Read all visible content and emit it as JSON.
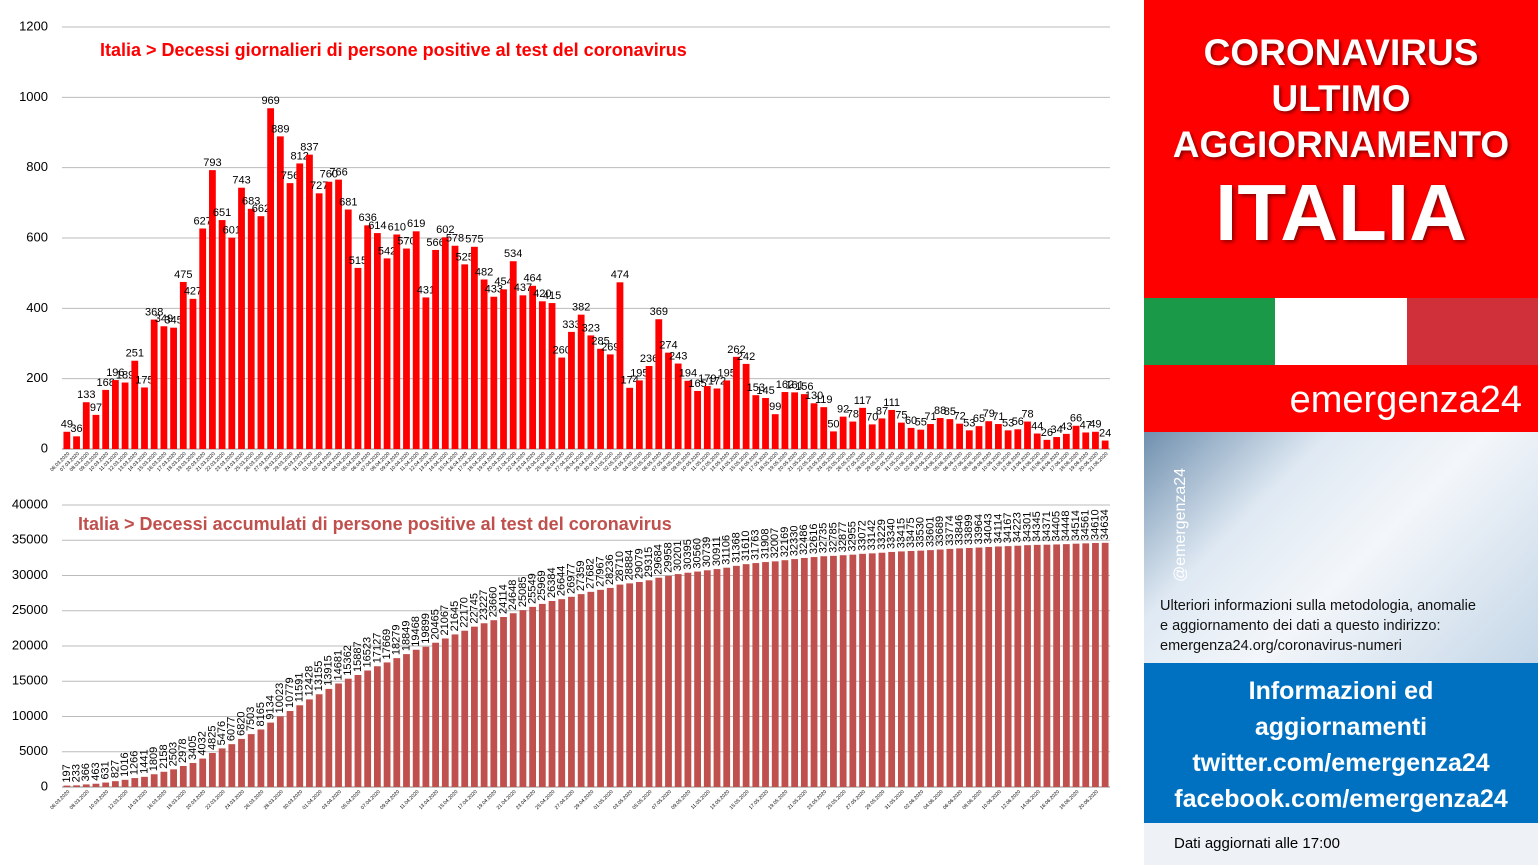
{
  "chart_data": [
    {
      "type": "bar",
      "title": "Italia > Decessi giornalieri di persone positive al test del coronavirus",
      "color": "#ff0000",
      "title_color": "#ff0000",
      "grid": true,
      "ylim": [
        0,
        1200
      ],
      "yticks": [
        0,
        200,
        400,
        600,
        800,
        1000,
        1200
      ],
      "categories": [
        "06.03.2020",
        "07.03.2020",
        "08.03.2020",
        "09.03.2020",
        "10.03.2020",
        "11.03.2020",
        "12.03.2020",
        "13.03.2020",
        "14.03.2020",
        "15.03.2020",
        "16.03.2020",
        "17.03.2020",
        "18.03.2020",
        "19.03.2020",
        "20.03.2020",
        "21.03.2020",
        "22.03.2020",
        "23.03.2020",
        "24.03.2020",
        "25.03.2020",
        "26.03.2020",
        "27.03.2020",
        "28.03.2020",
        "29.03.2020",
        "30.03.2020",
        "31.03.2020",
        "01.04.2020",
        "02.04.2020",
        "03.04.2020",
        "04.04.2020",
        "05.04.2020",
        "06.04.2020",
        "07.04.2020",
        "08.04.2020",
        "09.04.2020",
        "10.04.2020",
        "11.04.2020",
        "12.04.2020",
        "13.04.2020",
        "14.04.2020",
        "15.04.2020",
        "16.04.2020",
        "17.04.2020",
        "18.04.2020",
        "19.04.2020",
        "20.04.2020",
        "21.04.2020",
        "22.04.2020",
        "23.04.2020",
        "24.04.2020",
        "25.04.2020",
        "26.04.2020",
        "27.04.2020",
        "28.04.2020",
        "29.04.2020",
        "30.04.2020",
        "01.05.2020",
        "02.05.2020",
        "03.05.2020",
        "04.05.2020",
        "05.05.2020",
        "06.05.2020",
        "07.05.2020",
        "08.05.2020",
        "09.05.2020",
        "10.05.2020",
        "11.05.2020",
        "12.05.2020",
        "13.05.2020",
        "14.05.2020",
        "15.05.2020",
        "16.05.2020",
        "17.05.2020",
        "18.05.2020",
        "19.05.2020",
        "20.05.2020",
        "21.05.2020",
        "22.05.2020",
        "23.05.2020",
        "24.05.2020",
        "25.05.2020",
        "26.05.2020",
        "27.05.2020",
        "28.05.2020",
        "29.05.2020",
        "30.05.2020",
        "31.05.2020",
        "01.06.2020",
        "02.06.2020",
        "03.06.2020",
        "04.06.2020",
        "05.06.2020",
        "06.06.2020",
        "07.06.2020",
        "08.06.2020",
        "09.06.2020",
        "10.06.2020",
        "11.06.2020",
        "12.06.2020",
        "13.06.2020",
        "14.06.2020",
        "15.06.2020",
        "16.06.2020",
        "17.06.2020",
        "18.06.2020",
        "19.06.2020",
        "20.06.2020",
        "21.06.2020"
      ],
      "values": [
        49,
        36,
        133,
        97,
        168,
        196,
        189,
        251,
        175,
        368,
        349,
        345,
        475,
        427,
        627,
        793,
        651,
        601,
        743,
        683,
        662,
        969,
        889,
        756,
        812,
        837,
        727,
        760,
        766,
        681,
        515,
        636,
        614,
        542,
        610,
        570,
        619,
        431,
        566,
        602,
        578,
        525,
        575,
        482,
        433,
        454,
        534,
        437,
        464,
        420,
        415,
        260,
        333,
        382,
        323,
        285,
        269,
        474,
        174,
        195,
        236,
        369,
        274,
        243,
        194,
        165,
        179,
        172,
        195,
        262,
        242,
        153,
        145,
        99,
        162,
        161,
        156,
        130,
        119,
        50,
        92,
        78,
        117,
        70,
        87,
        111,
        75,
        60,
        55,
        71,
        88,
        85,
        72,
        53,
        65,
        79,
        71,
        53,
        56,
        78,
        44,
        26,
        34,
        43,
        66,
        47,
        49,
        24
      ]
    },
    {
      "type": "bar",
      "title": "Italia > Decessi accumulati di persone positive al test del coronavirus",
      "color": "#c0504d",
      "title_color": "#c0504d",
      "grid": true,
      "ylim": [
        0,
        40000
      ],
      "yticks": [
        0,
        5000,
        10000,
        15000,
        20000,
        25000,
        30000,
        35000,
        40000
      ],
      "categories": [
        "06.03.2020",
        null,
        "08.03.2020",
        null,
        "10.03.2020",
        null,
        "12.03.2020",
        null,
        "14.03.2020",
        null,
        "16.03.2020",
        null,
        "18.03.2020",
        null,
        "20.03.2020",
        null,
        "22.03.2020",
        null,
        "24.03.2020",
        null,
        "26.03.2020",
        null,
        "28.03.2020",
        null,
        "30.03.2020",
        null,
        "01.04.2020",
        null,
        "03.04.2020",
        null,
        "05.04.2020",
        null,
        "07.04.2020",
        null,
        "09.04.2020",
        null,
        "11.04.2020",
        null,
        "13.04.2020",
        null,
        "15.04.2020",
        null,
        "17.04.2020",
        null,
        "19.04.2020",
        null,
        "21.04.2020",
        null,
        "23.04.2020",
        null,
        "25.04.2020",
        null,
        "27.04.2020",
        null,
        "29.04.2020",
        null,
        "01.05.2020",
        null,
        "03.05.2020",
        null,
        "05.05.2020",
        null,
        "07.05.2020",
        null,
        "09.05.2020",
        null,
        "11.05.2020",
        null,
        "13.05.2020",
        null,
        "15.05.2020",
        null,
        "17.05.2020",
        null,
        "19.05.2020",
        null,
        "21.05.2020",
        null,
        "23.05.2020",
        null,
        "25.05.2020",
        null,
        "27.05.2020",
        null,
        "29.05.2020",
        null,
        "31.05.2020",
        null,
        "02.06.2020",
        null,
        "04.06.2020",
        null,
        "06.06.2020",
        null,
        "08.06.2020",
        null,
        "10.06.2020",
        null,
        "12.06.2020",
        null,
        "14.06.2020",
        null,
        "16.06.2020",
        null,
        "18.06.2020",
        null,
        "20.06.2020",
        null
      ],
      "values": [
        197,
        233,
        366,
        463,
        631,
        827,
        1016,
        1266,
        1441,
        1809,
        2158,
        2503,
        2978,
        3405,
        4032,
        4825,
        5476,
        6077,
        6820,
        7503,
        8165,
        9134,
        10023,
        10779,
        11591,
        12428,
        13155,
        13915,
        14681,
        15362,
        15887,
        16523,
        17127,
        17669,
        18279,
        18849,
        19468,
        19899,
        20465,
        21067,
        21645,
        22170,
        22745,
        23227,
        23660,
        24114,
        24648,
        25085,
        25549,
        25969,
        26384,
        26644,
        26977,
        27359,
        27682,
        27967,
        28236,
        28710,
        28884,
        29079,
        29315,
        29684,
        29958,
        30201,
        30395,
        30560,
        30739,
        30911,
        31106,
        31368,
        31610,
        31763,
        31908,
        32007,
        32169,
        32330,
        32486,
        32616,
        32735,
        32785,
        32877,
        32955,
        33072,
        33142,
        33229,
        33340,
        33415,
        33475,
        33530,
        33601,
        33689,
        33774,
        33846,
        33899,
        33964,
        34043,
        34114,
        34167,
        34223,
        34301,
        34345,
        34371,
        34405,
        34448,
        34514,
        34561,
        34610,
        34634
      ]
    }
  ],
  "side": {
    "title_lines": [
      "CORONAVIRUS",
      "ULTIMO",
      "AGGIORNAMENTO"
    ],
    "country": "ITALIA",
    "brand": "emergenza24",
    "handle": "@emergenza24",
    "info": [
      "Ulteriori informazioni sulla metodologia, anomalie",
      "e aggiornamento dei dati a questo indirizzo:",
      "emergenza24.org/coronavirus-numeri"
    ],
    "social": [
      "Informazioni ed",
      "aggiornamenti",
      "twitter.com/emergenza24",
      "facebook.com/emergenza24"
    ],
    "footer": "Dati aggiornati alle 17:00"
  }
}
